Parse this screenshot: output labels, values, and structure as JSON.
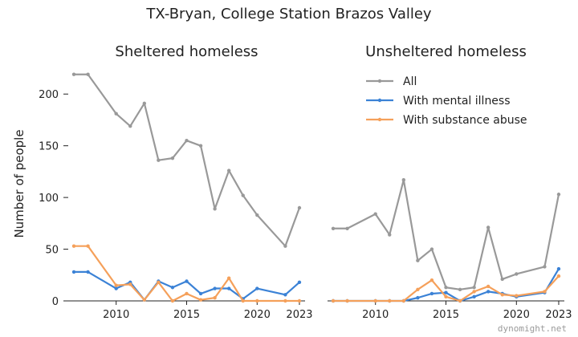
{
  "figure_title": "TX-Bryan, College Station Brazos Valley",
  "watermark": "dynomight.net",
  "ylabel": "Number of people",
  "colors": {
    "All": "#999999",
    "With mental illness": "#3b82d6",
    "With substance abuse": "#f5a05a"
  },
  "chart_data": [
    {
      "type": "line",
      "title": "Sheltered homeless",
      "xlabel": "",
      "ylabel": "Number of people",
      "xlim": [
        2006.6,
        2023.4
      ],
      "ylim": [
        0,
        225
      ],
      "xticks": [
        2010,
        2015,
        2020,
        2023
      ],
      "yticks": [
        0,
        50,
        100,
        150,
        200
      ],
      "grid": false,
      "x": [
        2007,
        2008,
        2010,
        2011,
        2012,
        2013,
        2014,
        2015,
        2016,
        2017,
        2018,
        2019,
        2020,
        2022,
        2023
      ],
      "series": [
        {
          "name": "All",
          "values": [
            219,
            219,
            181,
            169,
            191,
            136,
            138,
            155,
            150,
            89,
            126,
            102,
            83,
            53,
            90
          ]
        },
        {
          "name": "With mental illness",
          "values": [
            28,
            28,
            12,
            18,
            1,
            19,
            13,
            19,
            7,
            12,
            12,
            2,
            12,
            6,
            18
          ]
        },
        {
          "name": "With substance abuse",
          "values": [
            53,
            53,
            15,
            16,
            1,
            18,
            0,
            7,
            1,
            3,
            22,
            0,
            0,
            0,
            0
          ]
        }
      ]
    },
    {
      "type": "line",
      "title": "Unsheltered homeless",
      "xlabel": "",
      "ylabel": "",
      "xlim": [
        2006.6,
        2023.4
      ],
      "ylim": [
        0,
        225
      ],
      "xticks": [
        2010,
        2015,
        2020,
        2023
      ],
      "yticks": [],
      "grid": false,
      "legend": "top-right",
      "x": [
        2007,
        2008,
        2010,
        2011,
        2012,
        2013,
        2014,
        2015,
        2016,
        2017,
        2018,
        2019,
        2020,
        2022,
        2023
      ],
      "series": [
        {
          "name": "All",
          "values": [
            70,
            70,
            84,
            64,
            117,
            39,
            50,
            13,
            11,
            13,
            71,
            21,
            26,
            33,
            103
          ]
        },
        {
          "name": "With mental illness",
          "values": [
            0,
            0,
            0,
            0,
            0,
            3,
            7,
            8,
            0,
            4,
            9,
            7,
            4,
            8,
            31
          ]
        },
        {
          "name": "With substance abuse",
          "values": [
            0,
            0,
            0,
            0,
            0,
            11,
            20,
            4,
            0,
            9,
            14,
            6,
            5,
            9,
            24
          ]
        }
      ]
    }
  ]
}
